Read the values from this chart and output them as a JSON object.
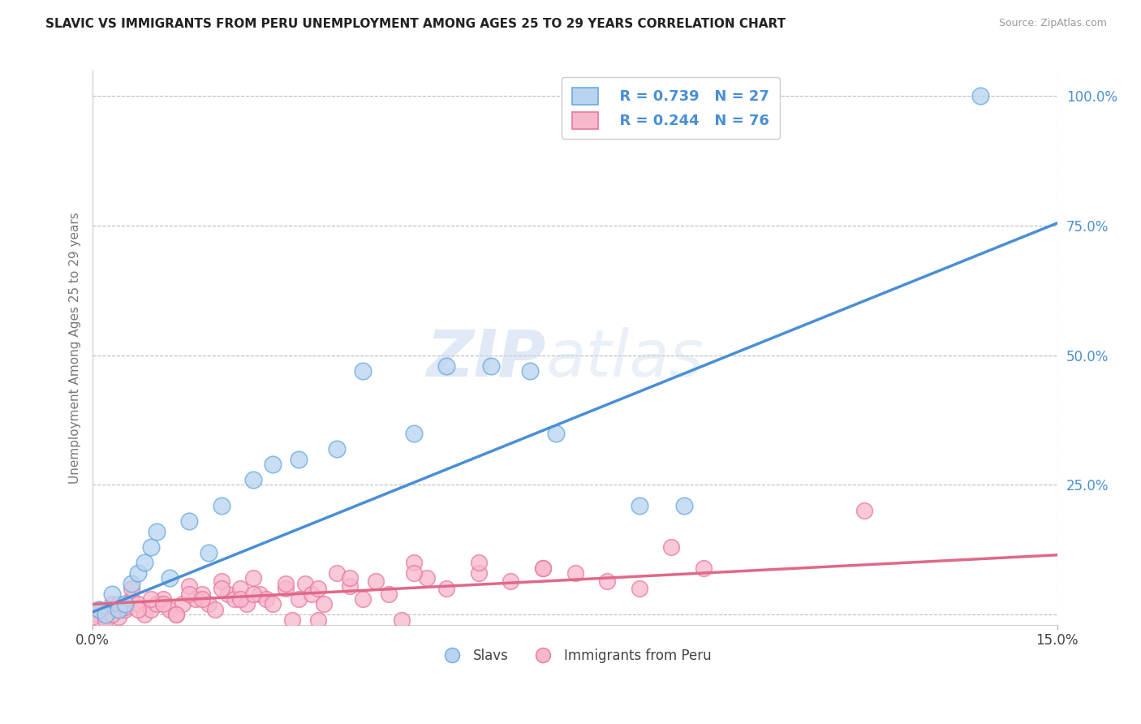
{
  "title": "SLAVIC VS IMMIGRANTS FROM PERU UNEMPLOYMENT AMONG AGES 25 TO 29 YEARS CORRELATION CHART",
  "source": "Source: ZipAtlas.com",
  "ylabel": "Unemployment Among Ages 25 to 29 years",
  "xlim": [
    0.0,
    0.15
  ],
  "ylim": [
    -0.02,
    1.05
  ],
  "ytick_positions": [
    0.0,
    0.25,
    0.5,
    0.75,
    1.0
  ],
  "ytick_labels": [
    "",
    "25.0%",
    "50.0%",
    "75.0%",
    "100.0%"
  ],
  "background_color": "#ffffff",
  "grid_color": "#bbbbbb",
  "legend_r_slavs": "R = 0.739",
  "legend_n_slavs": "N = 27",
  "legend_r_peru": "R = 0.244",
  "legend_n_peru": "N = 76",
  "slavs_fill_color": "#b8d4f0",
  "peru_fill_color": "#f8b8cc",
  "slavs_edge_color": "#6aaae0",
  "peru_edge_color": "#e878a0",
  "slavs_line_color": "#4a8fd4",
  "peru_line_color": "#e06888",
  "label_color": "#4a8fd4",
  "slavs_scatter_x": [
    0.001,
    0.002,
    0.003,
    0.004,
    0.005,
    0.006,
    0.007,
    0.008,
    0.009,
    0.01,
    0.012,
    0.015,
    0.018,
    0.02,
    0.025,
    0.028,
    0.032,
    0.038,
    0.042,
    0.05,
    0.055,
    0.062,
    0.068,
    0.072,
    0.085,
    0.092,
    0.138
  ],
  "slavs_scatter_y": [
    0.01,
    0.0,
    0.04,
    0.01,
    0.02,
    0.06,
    0.08,
    0.1,
    0.13,
    0.16,
    0.07,
    0.18,
    0.12,
    0.21,
    0.26,
    0.29,
    0.3,
    0.32,
    0.47,
    0.35,
    0.48,
    0.48,
    0.47,
    0.35,
    0.21,
    0.21,
    1.0
  ],
  "peru_scatter_x": [
    0.0,
    0.001,
    0.002,
    0.003,
    0.004,
    0.005,
    0.006,
    0.007,
    0.008,
    0.009,
    0.01,
    0.011,
    0.012,
    0.013,
    0.014,
    0.015,
    0.016,
    0.017,
    0.018,
    0.019,
    0.02,
    0.021,
    0.022,
    0.023,
    0.024,
    0.025,
    0.026,
    0.027,
    0.028,
    0.03,
    0.031,
    0.032,
    0.033,
    0.034,
    0.035,
    0.036,
    0.038,
    0.04,
    0.042,
    0.044,
    0.046,
    0.048,
    0.05,
    0.052,
    0.055,
    0.06,
    0.065,
    0.07,
    0.075,
    0.08,
    0.0,
    0.001,
    0.002,
    0.003,
    0.004,
    0.005,
    0.006,
    0.007,
    0.009,
    0.011,
    0.013,
    0.015,
    0.017,
    0.02,
    0.023,
    0.025,
    0.03,
    0.035,
    0.04,
    0.05,
    0.06,
    0.07,
    0.085,
    0.09,
    0.095,
    0.12
  ],
  "peru_scatter_y": [
    0.0,
    0.01,
    -0.005,
    0.02,
    -0.005,
    0.01,
    0.03,
    0.02,
    0.0,
    0.01,
    0.02,
    0.03,
    0.01,
    0.0,
    0.02,
    0.055,
    0.03,
    0.04,
    0.02,
    0.01,
    0.065,
    0.04,
    0.03,
    0.05,
    0.02,
    0.07,
    0.04,
    0.03,
    0.02,
    0.05,
    -0.01,
    0.03,
    0.06,
    0.04,
    -0.01,
    0.02,
    0.08,
    0.055,
    0.03,
    0.065,
    0.04,
    -0.01,
    0.1,
    0.07,
    0.05,
    0.08,
    0.065,
    0.09,
    0.08,
    0.065,
    -0.005,
    0.01,
    -0.01,
    0.0,
    0.02,
    0.015,
    0.05,
    0.01,
    0.03,
    0.02,
    0.0,
    0.04,
    0.03,
    0.05,
    0.03,
    0.04,
    0.06,
    0.05,
    0.07,
    0.08,
    0.1,
    0.09,
    0.05,
    0.13,
    0.09,
    0.2
  ],
  "slavs_trendline_x": [
    0.0,
    0.15
  ],
  "slavs_trendline_y": [
    0.005,
    0.755
  ],
  "peru_trendline_x": [
    0.0,
    0.15
  ],
  "peru_trendline_y": [
    0.02,
    0.115
  ]
}
